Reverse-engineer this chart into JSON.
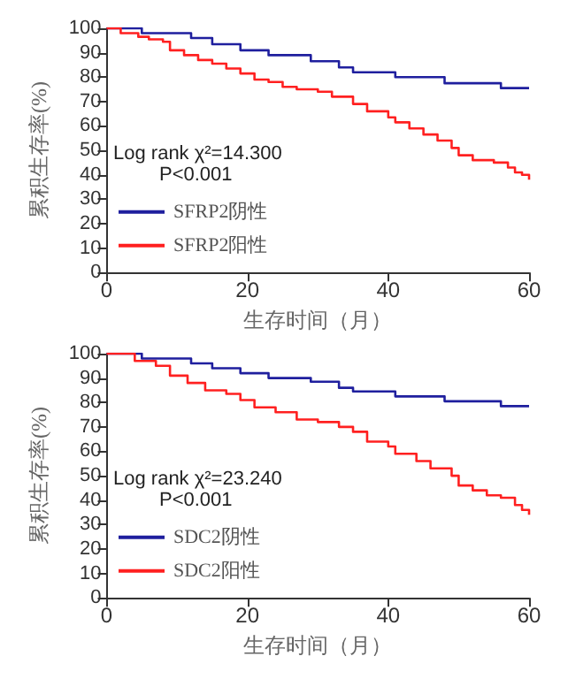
{
  "chart_data": [
    {
      "type": "step",
      "xlabel": "生存时间（月）",
      "ylabel": "累积生存率(%)",
      "xlim": [
        0,
        60
      ],
      "xticks": [
        0,
        20,
        40,
        60
      ],
      "ylim": [
        0,
        100
      ],
      "yticks": [
        0,
        10,
        20,
        30,
        40,
        50,
        60,
        70,
        80,
        90,
        100
      ],
      "grid": false,
      "legend": "left",
      "annotations": [
        "Log rank χ²=14.300",
        "P<0.001"
      ],
      "series": [
        {
          "name": "SFRP2阴性",
          "color": "#1f1f9e",
          "x": [
            0,
            5,
            12,
            15,
            19,
            23,
            29,
            33,
            35,
            41,
            48,
            56,
            60
          ],
          "values": [
            100,
            98,
            96,
            93.5,
            91,
            89,
            86.5,
            84,
            82,
            80,
            77.5,
            75.5,
            75.5
          ]
        },
        {
          "name": "SFRP2阳性",
          "color": "#ff2020",
          "x": [
            0,
            2,
            4.5,
            6,
            8,
            9,
            11,
            13,
            15,
            17,
            19,
            21,
            23,
            25,
            27,
            30,
            32,
            35,
            37,
            40,
            41,
            43,
            45,
            47,
            49,
            50,
            52,
            55,
            57,
            58,
            59,
            60
          ],
          "values": [
            100,
            98,
            96.5,
            95.5,
            94.5,
            91,
            89,
            87,
            85.5,
            83.5,
            81.5,
            79,
            78,
            76,
            75,
            74,
            72,
            69,
            66,
            63.5,
            61.5,
            59,
            56.5,
            54,
            51,
            48,
            46,
            45,
            43,
            41,
            40,
            38
          ]
        }
      ]
    },
    {
      "type": "step",
      "xlabel": "生存时间（月）",
      "ylabel": "累积生存率(%)",
      "xlim": [
        0,
        60
      ],
      "xticks": [
        0,
        20,
        40,
        60
      ],
      "ylim": [
        0,
        100
      ],
      "yticks": [
        0,
        10,
        20,
        30,
        40,
        50,
        60,
        70,
        80,
        90,
        100
      ],
      "grid": false,
      "legend": "left",
      "annotations": [
        "Log rank χ²=23.240",
        "P<0.001"
      ],
      "series": [
        {
          "name": "SDC2阴性",
          "color": "#1f1f9e",
          "x": [
            0,
            5,
            12,
            15,
            19,
            23,
            29,
            33,
            35,
            41,
            48,
            56,
            60
          ],
          "values": [
            100,
            98,
            96,
            94,
            92,
            90,
            88.5,
            86,
            84.5,
            82.5,
            80.5,
            78.5,
            78.5
          ]
        },
        {
          "name": "SDC2阳性",
          "color": "#ff2020",
          "x": [
            0,
            4,
            7,
            9,
            11.5,
            14,
            17,
            19,
            21,
            24,
            27,
            30,
            33,
            35,
            37,
            40,
            41,
            44,
            46,
            49,
            50,
            52,
            54,
            56,
            58,
            59,
            60
          ],
          "values": [
            100,
            97,
            95,
            91,
            88,
            85,
            83.5,
            81,
            78,
            76,
            73,
            72,
            70,
            68,
            64,
            62,
            59,
            56,
            53,
            50,
            46,
            44,
            42,
            41,
            38,
            36,
            34
          ]
        }
      ]
    }
  ]
}
